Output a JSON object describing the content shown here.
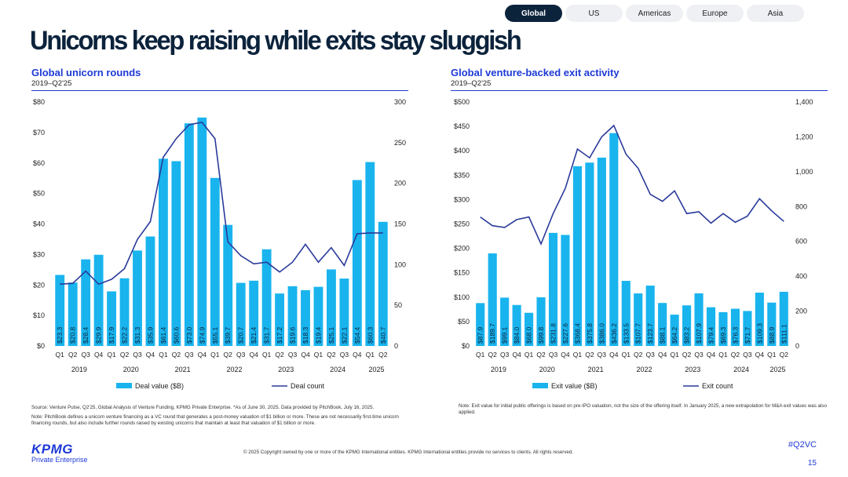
{
  "tabs": [
    "Global",
    "US",
    "Americas",
    "Europe",
    "Asia"
  ],
  "active_tab": "Global",
  "page_title": "Unicorns keep raising while exits stay sluggish",
  "colors": {
    "bar": "#19b4ee",
    "line": "#2a3a9a",
    "accent": "#1e3ad6",
    "navy": "#0c233c"
  },
  "left_chart": {
    "title": "Global unicorn rounds",
    "subtitle": "2019–Q2'25",
    "note1": "Source: Venture Pulse, Q2'25, Global Analysis of Venture Funding, KPMG Private Enterprise. *As of June 30, 2025. Data provided by PitchBook, July 16, 2025.",
    "note2": "Note: PitchBook defines a unicorn venture financing as a VC round that generates a post-money valuation of $1 billion or more. These are not necessarily first-time unicorn financing rounds, but also include further rounds raised by existing unicorns that maintain at least that valuation of $1 billion or more."
  },
  "right_chart": {
    "title": "Global venture-backed exit activity",
    "subtitle": "2019–Q2'25",
    "note1": "Note: Exit value for initial public offerings is based on pre-IPO valuation, not the size of the offering itself. In January 2025, a new extrapolation for M&A exit values was also applied."
  },
  "footer": {
    "copyright": "© 2025 Copyright owned by one or more of the KPMG International entities. KPMG International entities provide no services to clients. All rights reserved.",
    "hashtag": "#Q2VC",
    "page": "15",
    "logo": "KPMG",
    "logo_sub": "Private Enterprise"
  },
  "chart_data": [
    {
      "type": "bar",
      "title": "Global unicorn rounds",
      "categories": [
        "Q1",
        "Q2",
        "Q3",
        "Q4",
        "Q1",
        "Q2",
        "Q3",
        "Q4",
        "Q1",
        "Q2",
        "Q3",
        "Q4",
        "Q1",
        "Q2",
        "Q3",
        "Q4",
        "Q1",
        "Q2",
        "Q3",
        "Q4",
        "Q1",
        "Q2",
        "Q3",
        "Q4",
        "Q1",
        "Q2"
      ],
      "years": [
        "2019",
        "2020",
        "2021",
        "2022",
        "2023",
        "2024",
        "2025"
      ],
      "series": [
        {
          "name": "Deal value ($B)",
          "type": "bar",
          "axis": "left",
          "values": [
            23.3,
            20.8,
            28.4,
            29.9,
            17.9,
            22.2,
            31.3,
            35.9,
            61.4,
            60.6,
            73.0,
            74.9,
            55.1,
            39.7,
            20.7,
            21.4,
            31.7,
            17.2,
            19.6,
            18.3,
            19.4,
            25.1,
            22.1,
            54.4,
            60.3,
            40.7
          ],
          "labels": [
            "$23.3",
            "$20.8",
            "$28.4",
            "$29.9",
            "$17.9",
            "$22.2",
            "$31.3",
            "$35.9",
            "$61.4",
            "$60.6",
            "$73.0",
            "$74.9",
            "$55.1",
            "$39.7",
            "$20.7",
            "$21.4",
            "$31.7",
            "$17.2",
            "$19.6",
            "$18.3",
            "$19.4",
            "$25.1",
            "$22.1",
            "$54.4",
            "$60.3",
            "$40.7"
          ]
        },
        {
          "name": "Deal count",
          "type": "line",
          "axis": "right",
          "values": [
            76,
            77,
            92,
            76,
            82,
            95,
            131,
            153,
            232,
            255,
            272,
            275,
            255,
            128,
            111,
            101,
            103,
            91,
            103,
            125,
            103,
            121,
            99,
            138,
            139,
            139
          ]
        }
      ],
      "ylim_left": [
        0,
        80
      ],
      "yticks_left": [
        "$0",
        "$10",
        "$20",
        "$30",
        "$40",
        "$50",
        "$60",
        "$70",
        "$80"
      ],
      "ylim_right": [
        0,
        300
      ],
      "yticks_right": [
        "0",
        "50",
        "100",
        "150",
        "200",
        "250",
        "300"
      ],
      "legend": [
        "Deal value ($B)",
        "Deal count"
      ]
    },
    {
      "type": "bar",
      "title": "Global venture-backed exit activity",
      "categories": [
        "Q1",
        "Q2",
        "Q3",
        "Q4",
        "Q1",
        "Q2",
        "Q3",
        "Q4",
        "Q1",
        "Q2",
        "Q3",
        "Q4",
        "Q1",
        "Q2",
        "Q3",
        "Q4",
        "Q1",
        "Q2",
        "Q3",
        "Q4",
        "Q1",
        "Q2",
        "Q3",
        "Q4",
        "Q1",
        "Q2"
      ],
      "years": [
        "2019",
        "2020",
        "2021",
        "2022",
        "2023",
        "2024",
        "2025"
      ],
      "series": [
        {
          "name": "Exit value ($B)",
          "type": "bar",
          "axis": "left",
          "values": [
            87.9,
            189.7,
            99.1,
            84.0,
            68.0,
            99.8,
            231.8,
            227.6,
            368.4,
            375.8,
            386.0,
            436.2,
            133.5,
            107.7,
            123.7,
            88.1,
            64.2,
            83.2,
            107.9,
            79.4,
            69.3,
            76.3,
            71.7,
            109.3,
            88.9,
            111.1
          ],
          "labels": [
            "$87.9",
            "$189.7",
            "$99.1",
            "$84.0",
            "$68.0",
            "$99.8",
            "$231.8",
            "$227.6",
            "$368.4",
            "$375.8",
            "$386.0",
            "$436.2",
            "$133.5",
            "$107.7",
            "$123.7",
            "$88.1",
            "$64.2",
            "$83.2",
            "$107.9",
            "$79.4",
            "$69.3",
            "$76.3",
            "$71.7",
            "$109.3",
            "$88.9",
            "$111.1"
          ]
        },
        {
          "name": "Exit count",
          "type": "line",
          "axis": "right",
          "values": [
            740,
            690,
            680,
            725,
            740,
            585,
            760,
            905,
            1130,
            1080,
            1200,
            1265,
            1100,
            1020,
            870,
            830,
            890,
            760,
            770,
            705,
            760,
            710,
            745,
            845,
            775,
            715
          ]
        }
      ],
      "ylim_left": [
        0,
        500
      ],
      "yticks_left": [
        "$0",
        "$50",
        "$100",
        "$150",
        "$200",
        "$250",
        "$300",
        "$350",
        "$400",
        "$450",
        "$500"
      ],
      "ylim_right": [
        0,
        1400
      ],
      "yticks_right": [
        "0",
        "200",
        "400",
        "600",
        "800",
        "1,000",
        "1,200",
        "1,400"
      ],
      "legend": [
        "Exit value ($B)",
        "Exit count"
      ]
    }
  ]
}
